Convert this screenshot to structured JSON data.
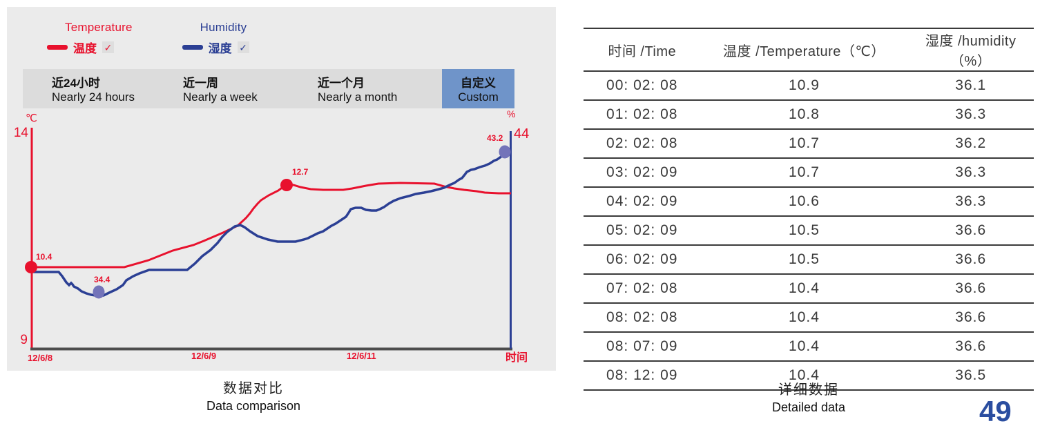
{
  "page": {
    "page_number": "49"
  },
  "left_panel": {
    "legend": {
      "temperature": {
        "en": "Temperature",
        "zh": "温度",
        "checked": true,
        "color": "#e8112d"
      },
      "humidity": {
        "en": "Humidity",
        "zh": "湿度",
        "checked": true,
        "color": "#2b3f94"
      }
    },
    "tabs": [
      {
        "zh": "近24小时",
        "en": "Nearly 24 hours",
        "active": false
      },
      {
        "zh": "近一周",
        "en": "Nearly a week",
        "active": false
      },
      {
        "zh": "近一个月",
        "en": "Nearly  a month",
        "active": false
      },
      {
        "zh": "自定义",
        "en": "Custom",
        "active": true
      }
    ],
    "chart_labels": {
      "left_unit": "℃",
      "left_max": "14",
      "left_min": "9",
      "right_unit": "%",
      "right_max": "44",
      "tick1": "12/6/8",
      "tick2": "12/6/9",
      "tick3": "12/6/11",
      "x_axis_name": "时间",
      "temp_start": "10.4",
      "temp_peak": "12.7",
      "hum_low": "34.4",
      "hum_end": "43.2"
    },
    "caption_zh": "数据对比",
    "caption_en": "Data comparison"
  },
  "table_panel": {
    "headers": [
      "时间 /Time",
      "温度 /Temperature（℃）",
      "湿度 /humidity（%）"
    ],
    "rows": [
      {
        "time": "00: 02: 08",
        "temperature": "10.9",
        "humidity": "36.1"
      },
      {
        "time": "01: 02: 08",
        "temperature": "10.8",
        "humidity": "36.3"
      },
      {
        "time": "02: 02: 08",
        "temperature": "10.7",
        "humidity": "36.2"
      },
      {
        "time": "03: 02: 09",
        "temperature": "10.7",
        "humidity": "36.3"
      },
      {
        "time": "04: 02: 09",
        "temperature": "10.6",
        "humidity": "36.3"
      },
      {
        "time": "05: 02: 09",
        "temperature": "10.5",
        "humidity": "36.6"
      },
      {
        "time": "06: 02: 09",
        "temperature": "10.5",
        "humidity": "36.6"
      },
      {
        "time": "07: 02: 08",
        "temperature": "10.4",
        "humidity": "36.6"
      },
      {
        "time": "08: 02: 08",
        "temperature": "10.4",
        "humidity": "36.6"
      },
      {
        "time": "08: 07: 09",
        "temperature": "10.4",
        "humidity": "36.6"
      },
      {
        "time": "08: 12: 09",
        "temperature": "10.4",
        "humidity": "36.5"
      }
    ],
    "caption_zh": "详细数据",
    "caption_en": "Detailed data"
  },
  "colors": {
    "temperature_red": "#e8112d",
    "humidity_blue": "#2b3f94",
    "humidity_dot": "#7373b9",
    "panel_bg": "#ebebeb",
    "tabbar_bg": "#dcdcdc",
    "active_tab_bg": "#6f94c9",
    "x_axis_gray": "#4d4d4d",
    "table_text": "#3a3a3a",
    "page_number_blue": "#2b4ea0"
  },
  "chart_data": [
    {
      "type": "line",
      "title": "数据对比 / Data comparison",
      "xlabel": "时间 /Time",
      "x_ticks": [
        "12/6/8",
        "12/6/9",
        "12/6/11"
      ],
      "left_axis": {
        "label": "℃",
        "min": 9,
        "max": 14
      },
      "right_axis": {
        "label": "%",
        "top_tick": 44
      },
      "grid": false,
      "legend_position": "top-left",
      "series": [
        {
          "name": "温度 /Temperature (℃)",
          "axis": "left",
          "color": "#e8112d",
          "marked_points": [
            {
              "label": "10.4",
              "value": 10.4,
              "x_frac": 0.0
            },
            {
              "label": "12.7",
              "value": 12.7,
              "x_frac": 0.53
            }
          ],
          "points": [
            [
              0,
              10.4
            ],
            [
              0.19,
              10.4
            ],
            [
              0.29,
              10.9
            ],
            [
              0.36,
              11.1
            ],
            [
              0.43,
              11.5
            ],
            [
              0.46,
              12.0
            ],
            [
              0.5,
              12.4
            ],
            [
              0.53,
              12.7
            ],
            [
              0.61,
              12.5
            ],
            [
              0.68,
              12.6
            ],
            [
              0.72,
              12.7
            ],
            [
              0.84,
              12.7
            ],
            [
              0.9,
              12.5
            ],
            [
              1.0,
              12.4
            ]
          ]
        },
        {
          "name": "湿度 /humidity (%)",
          "axis": "right",
          "color": "#2b3f94",
          "marked_points": [
            {
              "label": "34.4",
              "value": 34.4,
              "x_frac": 0.14
            },
            {
              "label": "43.2",
              "value": 43.2,
              "x_frac": 0.99
            }
          ],
          "points": [
            [
              0,
              35.7
            ],
            [
              0.06,
              35.7
            ],
            [
              0.09,
              34.8
            ],
            [
              0.14,
              34.4
            ],
            [
              0.2,
              35.2
            ],
            [
              0.25,
              35.8
            ],
            [
              0.33,
              35.8
            ],
            [
              0.39,
              37.5
            ],
            [
              0.44,
              38.6
            ],
            [
              0.51,
              37.6
            ],
            [
              0.55,
              37.6
            ],
            [
              0.63,
              38.7
            ],
            [
              0.69,
              39.7
            ],
            [
              0.74,
              39.7
            ],
            [
              0.79,
              40.4
            ],
            [
              0.86,
              41.0
            ],
            [
              0.92,
              42.1
            ],
            [
              1.0,
              43.2
            ]
          ]
        }
      ]
    },
    {
      "type": "table",
      "title": "详细数据 / Detailed data",
      "columns": [
        "时间 /Time",
        "温度 /Temperature（℃）",
        "湿度 /humidity（%）"
      ],
      "rows": [
        [
          "00: 02: 08",
          10.9,
          36.1
        ],
        [
          "01: 02: 08",
          10.8,
          36.3
        ],
        [
          "02: 02: 08",
          10.7,
          36.2
        ],
        [
          "03: 02: 09",
          10.7,
          36.3
        ],
        [
          "04: 02: 09",
          10.6,
          36.3
        ],
        [
          "05: 02: 09",
          10.5,
          36.6
        ],
        [
          "06: 02: 09",
          10.5,
          36.6
        ],
        [
          "07: 02: 08",
          10.4,
          36.6
        ],
        [
          "08: 02: 08",
          10.4,
          36.6
        ],
        [
          "08: 07: 09",
          10.4,
          36.6
        ],
        [
          "08: 12: 09",
          10.4,
          36.5
        ]
      ]
    }
  ]
}
